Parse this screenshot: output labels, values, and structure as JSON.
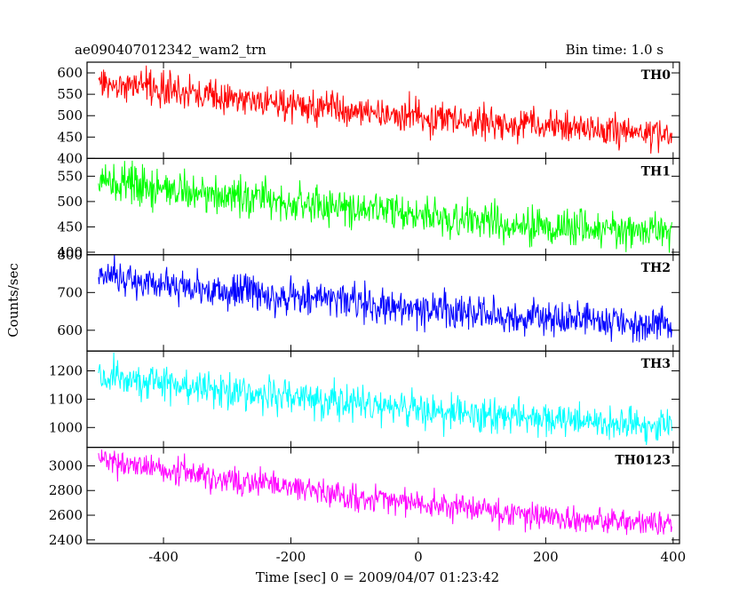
{
  "header": {
    "left": "ae090407012342_wam2_trn",
    "right": "Bin time: 1.0 s"
  },
  "chart_data": {
    "type": "line",
    "ylabel": "Counts/sec",
    "xlabel": "Time [sec] 0 = 2009/04/07 01:23:42",
    "xlim": [
      -520,
      410
    ],
    "xticks": [
      -400,
      -200,
      0,
      200,
      400
    ],
    "x_start": -502,
    "x_end": 398,
    "bin_time_s": 1.0,
    "panels": [
      {
        "name": "TH0",
        "color": "#ff0000",
        "ylim": [
          400,
          625
        ],
        "yticks": [
          400,
          450,
          500,
          550,
          600
        ],
        "start": 575,
        "end": 462,
        "noise": 28,
        "noise_style": "gaussian"
      },
      {
        "name": "TH1",
        "color": "#00ff00",
        "ylim": [
          395,
          585
        ],
        "yticks": [
          400,
          450,
          500,
          550
        ],
        "start": 540,
        "end": 440,
        "noise": 26,
        "noise_style": "gaussian"
      },
      {
        "name": "TH2",
        "color": "#0000ff",
        "ylim": [
          545,
          800
        ],
        "yticks": [
          600,
          700,
          800
        ],
        "start": 745,
        "end": 615,
        "noise": 33,
        "noise_style": "gaussian"
      },
      {
        "name": "TH3",
        "color": "#00ffff",
        "ylim": [
          930,
          1270
        ],
        "yticks": [
          1000,
          1100,
          1200
        ],
        "start": 1185,
        "end": 1005,
        "noise": 45,
        "noise_style": "gaussian"
      },
      {
        "name": "TH0123",
        "color": "#ff00ff",
        "ylim": [
          2370,
          3150
        ],
        "yticks": [
          2400,
          2600,
          2800,
          3000
        ],
        "start": 3050,
        "end": 2530,
        "noise": 75,
        "noise_style": "gaussian"
      }
    ]
  }
}
